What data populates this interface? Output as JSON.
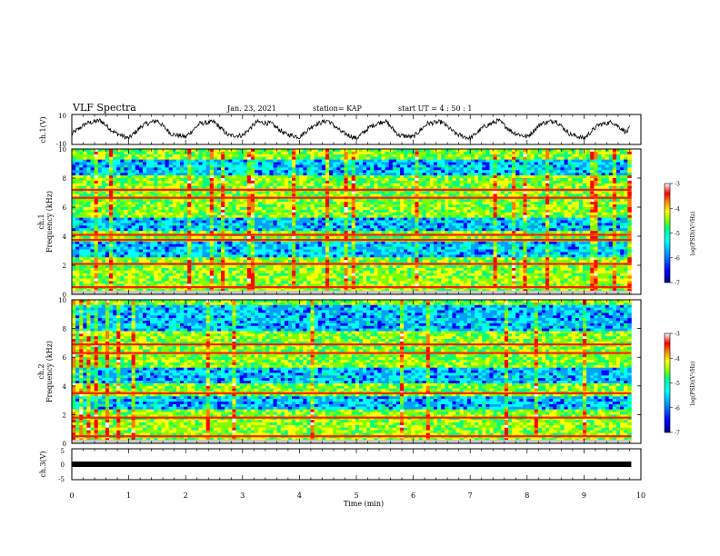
{
  "header": {
    "title": "VLF Spectra",
    "date": "Jan. 23, 2021",
    "station": "station= KAP",
    "start": "start  UT =   4 : 50 : 1"
  },
  "chart_data": [
    {
      "id": "ch1-waveform",
      "type": "line",
      "ylabel": "ch.1(V)",
      "ylim": [
        -10,
        10
      ],
      "yticks": [
        "10",
        "-10"
      ],
      "xlim": [
        0,
        10
      ],
      "series": [
        {
          "x": [
            0,
            0.25,
            0.5,
            0.75,
            1.0,
            1.25,
            1.5,
            1.75,
            2.0,
            2.25,
            2.5,
            2.75,
            3.0,
            3.25,
            3.5,
            3.75,
            4.0,
            4.25,
            4.5,
            4.75,
            5.0,
            5.25,
            5.5,
            5.75,
            6.0,
            6.25,
            6.5,
            6.75,
            7.0,
            7.25,
            7.5,
            7.75,
            8.0,
            8.25,
            8.5,
            8.75,
            9.0,
            9.25,
            9.5,
            9.75,
            9.8
          ],
          "y": [
            -3,
            4,
            6,
            -2,
            -6,
            3,
            6,
            -3,
            -5,
            4,
            5,
            -4,
            -4,
            5,
            4,
            -3,
            -5,
            3,
            6,
            -2,
            -6,
            2,
            6,
            -4,
            -5,
            4,
            5,
            -3,
            -6,
            2,
            6,
            -2,
            -5,
            4,
            6,
            -3,
            -6,
            3,
            5,
            -2,
            1
          ]
        }
      ]
    },
    {
      "id": "ch1-spectrogram",
      "type": "heatmap",
      "ylabel": "ch.1\nFrequency (kHz)",
      "ylim": [
        0,
        10
      ],
      "yticks": [
        "0",
        "2",
        "4",
        "6",
        "8",
        "10"
      ],
      "xlim": [
        0,
        10
      ],
      "time_extent_min": 9.83,
      "strong_lines_khz": [
        0.5,
        2.1,
        3.75,
        4.1,
        6.65,
        7.2
      ],
      "quiet_bands_khz": [
        [
          2.6,
          3.6
        ],
        [
          4.3,
          5.2
        ],
        [
          8.1,
          9.3
        ]
      ],
      "colorbar": {
        "label": "log(PSD)(V²/Hz)",
        "range": [
          -7,
          -3
        ],
        "ticks": [
          "-3",
          "-4",
          "-5",
          "-6",
          "-7"
        ]
      }
    },
    {
      "id": "ch2-spectrogram",
      "type": "heatmap",
      "ylabel": "ch.2\nFrequency (kHz)",
      "ylim": [
        0,
        10
      ],
      "yticks": [
        "0",
        "2",
        "4",
        "6",
        "8",
        "10"
      ],
      "xlim": [
        0,
        10
      ],
      "time_extent_min": 9.83,
      "strong_lines_khz": [
        0.5,
        1.8,
        3.5,
        6.3,
        6.9
      ],
      "quiet_bands_khz": [
        [
          2.4,
          3.2
        ],
        [
          4.2,
          5.3
        ],
        [
          7.8,
          9.6
        ]
      ],
      "colorbar": {
        "label": "log(PSD)(V²/Hz)",
        "range": [
          -7,
          -3
        ],
        "ticks": [
          "-3",
          "-4",
          "-5",
          "-6",
          "-7"
        ]
      }
    },
    {
      "id": "ch3-waveform",
      "type": "line",
      "ylabel": "ch.3(V)",
      "ylim": [
        -5,
        5
      ],
      "yticks": [
        "5",
        "0",
        "-5"
      ],
      "xlim": [
        0,
        10
      ],
      "xlabel": "Time  (min)",
      "xticks": [
        "0",
        "1",
        "2",
        "3",
        "4",
        "5",
        "6",
        "7",
        "8",
        "9",
        "10"
      ],
      "series": [
        {
          "x": [
            0,
            9.83
          ],
          "y": [
            -0.5,
            -0.5
          ]
        }
      ]
    }
  ],
  "colors": {
    "axis": "#000000",
    "colormap": [
      "#000080",
      "#0000ff",
      "#00a0ff",
      "#00ffff",
      "#00ff80",
      "#80ff00",
      "#ffff00",
      "#ff8000",
      "#ff0000",
      "#ffffff"
    ]
  }
}
